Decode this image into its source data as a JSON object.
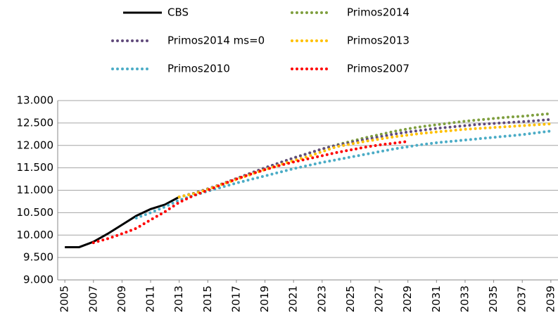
{
  "chart_data": {
    "type": "line",
    "x": [
      2005,
      2006,
      2007,
      2008,
      2009,
      2010,
      2011,
      2012,
      2013,
      2014,
      2015,
      2016,
      2017,
      2018,
      2019,
      2020,
      2021,
      2022,
      2023,
      2024,
      2025,
      2026,
      2027,
      2028,
      2029,
      2030,
      2031,
      2032,
      2033,
      2034,
      2035,
      2036,
      2037,
      2038,
      2039
    ],
    "xlim": [
      2004.5,
      2039.5
    ],
    "xticks": [
      2005,
      2007,
      2009,
      2011,
      2013,
      2015,
      2017,
      2019,
      2021,
      2023,
      2025,
      2027,
      2029,
      2031,
      2033,
      2035,
      2037,
      2039
    ],
    "ylim": [
      9000,
      13000
    ],
    "yticks": [
      {
        "value": 9000,
        "label": "9.000"
      },
      {
        "value": 9500,
        "label": "9.500"
      },
      {
        "value": 10000,
        "label": "10.000"
      },
      {
        "value": 10500,
        "label": "10.500"
      },
      {
        "value": 11000,
        "label": "11.000"
      },
      {
        "value": 11500,
        "label": "11.500"
      },
      {
        "value": 12000,
        "label": "12.000"
      },
      {
        "value": 12500,
        "label": "12.500"
      },
      {
        "value": 13000,
        "label": "13.000"
      }
    ],
    "grid": true,
    "series": [
      {
        "name": "CBS",
        "color": "#000000",
        "style": "solid",
        "values": [
          9730,
          9730,
          9850,
          10030,
          10230,
          10430,
          10580,
          10680,
          10850,
          null,
          null,
          null,
          null,
          null,
          null,
          null,
          null,
          null,
          null,
          null,
          null,
          null,
          null,
          null,
          null,
          null,
          null,
          null,
          null,
          null,
          null,
          null,
          null,
          null,
          null
        ]
      },
      {
        "name": "Primos2014",
        "color": "#7f9f3f",
        "style": "dotted",
        "values": [
          null,
          null,
          null,
          null,
          null,
          null,
          null,
          null,
          10850,
          10930,
          11030,
          11140,
          11260,
          11380,
          11500,
          11610,
          11720,
          11820,
          11920,
          12010,
          12090,
          12170,
          12240,
          12310,
          12370,
          12420,
          12460,
          12500,
          12540,
          12570,
          12600,
          12630,
          12650,
          12680,
          12710
        ]
      },
      {
        "name": "Primos2014 ms=0",
        "color": "#604a7b",
        "style": "dotted",
        "values": [
          null,
          null,
          null,
          null,
          null,
          null,
          null,
          null,
          10850,
          10930,
          11030,
          11140,
          11260,
          11380,
          11500,
          11610,
          11720,
          11820,
          11920,
          12000,
          12060,
          12130,
          12190,
          12250,
          12300,
          12340,
          12380,
          12410,
          12440,
          12470,
          12490,
          12510,
          12530,
          12550,
          12580
        ]
      },
      {
        "name": "Primos2013",
        "color": "#ffc000",
        "style": "dotted",
        "values": [
          null,
          null,
          null,
          null,
          null,
          null,
          null,
          null,
          10850,
          10920,
          11020,
          11130,
          11240,
          11350,
          11460,
          11560,
          11660,
          11750,
          11860,
          11970,
          12030,
          12090,
          12140,
          12190,
          12230,
          12270,
          12300,
          12330,
          12360,
          12380,
          12400,
          12420,
          12440,
          12460,
          12480
        ]
      },
      {
        "name": "Primos2010",
        "color": "#4bacc6",
        "style": "dotted",
        "values": [
          null,
          null,
          null,
          null,
          null,
          10380,
          10500,
          10630,
          10780,
          10880,
          10980,
          11070,
          11160,
          11240,
          11320,
          11400,
          11480,
          11550,
          11620,
          11680,
          11740,
          11800,
          11860,
          11920,
          11970,
          12020,
          12060,
          12090,
          12120,
          12150,
          12180,
          12210,
          12240,
          12280,
          12320
        ]
      },
      {
        "name": "Primos2007",
        "color": "#ff0000",
        "style": "dotted",
        "values": [
          null,
          null,
          9830,
          9920,
          10030,
          10150,
          10340,
          10520,
          10730,
          10880,
          11000,
          11130,
          11250,
          11360,
          11460,
          11550,
          11630,
          11700,
          11770,
          11840,
          11900,
          11960,
          12010,
          12050,
          12090,
          null,
          null,
          null,
          null,
          null,
          null,
          null,
          null,
          null,
          null
        ]
      }
    ]
  }
}
